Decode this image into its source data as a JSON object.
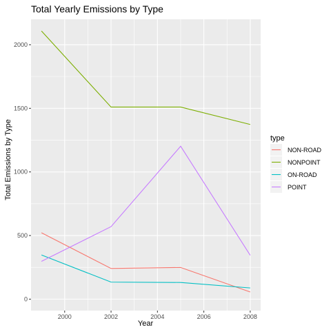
{
  "chart_data": {
    "type": "line",
    "title": "Total Yearly Emissions by Type",
    "xlabel": "Year",
    "ylabel": "Total Emissions by Type",
    "x": [
      1999,
      2002,
      2005,
      2008
    ],
    "xlim": [
      1998.55,
      2008.45
    ],
    "ylim": [
      -90,
      2200
    ],
    "x_ticks": [
      2000,
      2002,
      2004,
      2006,
      2008
    ],
    "y_ticks": [
      0,
      500,
      1000,
      1500,
      2000
    ],
    "grid": true,
    "legend": {
      "title": "type",
      "position": "right"
    },
    "series": [
      {
        "name": "NON-ROAD",
        "color": "#F8766D",
        "values": [
          522,
          241,
          249,
          56
        ]
      },
      {
        "name": "NONPOINT",
        "color": "#7CAE00",
        "values": [
          2108,
          1510,
          1510,
          1373
        ]
      },
      {
        "name": "ON-ROAD",
        "color": "#00BFC4",
        "values": [
          347,
          134,
          131,
          88
        ]
      },
      {
        "name": "POINT",
        "color": "#C77CFF",
        "values": [
          297,
          570,
          1202,
          345
        ]
      }
    ]
  }
}
